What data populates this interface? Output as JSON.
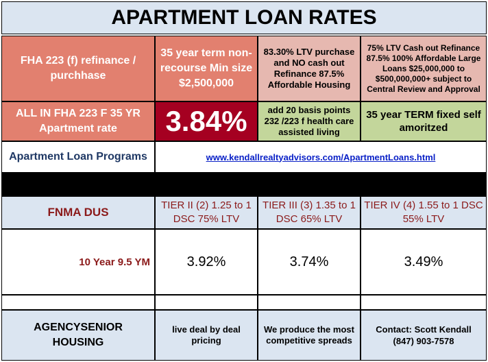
{
  "title": "APARTMENT LOAN RATES",
  "fha": {
    "label": "FHA 223 (f) refinance / purchhase",
    "term": "35 year term non-recourse Min size $2,500,000",
    "ltv": "83.30% LTV purchase and NO cash out Refinance 87.5% Affordable Housing",
    "cashout": "75% LTV Cash out Refinance 87.5% 100% Affordable Large Loans $25,000,000 to $500,000,000+ subject to Central Review and Approval",
    "allin_label": "ALL IN FHA 223 F 35 YR Apartment rate",
    "rate": "3.84%",
    "basis": "add 20 basis points 232 /223 f health care assisted living",
    "amortized": "35 year TERM fixed self amoritzed"
  },
  "programs": {
    "label": "Apartment Loan Programs",
    "url": "www.kendallrealtyadvisors.com/ApartmentLoans.html"
  },
  "fnma": {
    "label": "FNMA DUS",
    "tiers": [
      "TIER II (2) 1.25 to 1 DSC 75% LTV",
      "TIER III (3) 1.35 to 1 DSC 65% LTV",
      "TIER IV (4) 1.55 to 1 DSC 55% LTV"
    ],
    "term_label": "10 Year 9.5 YM",
    "rates": [
      "3.92%",
      "3.74%",
      "3.49%"
    ]
  },
  "footer": {
    "agency": "AGENCYSENIOR HOUSING",
    "live": "live deal by deal pricing",
    "spreads": "We produce the most competitive spreads",
    "contact_name": "Contact: Scott Kendall",
    "contact_phone": "(847) 903-7578"
  },
  "colors": {
    "salmon": "#e2806f",
    "pink": "#e6b8b0",
    "green": "#c3d69b",
    "dark_red": "#a50021",
    "light_blue": "#dbe5f1"
  }
}
